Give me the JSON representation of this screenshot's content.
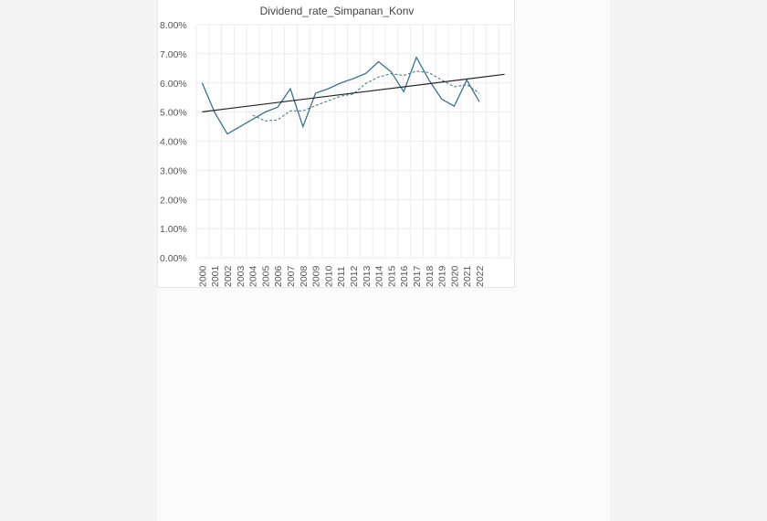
{
  "chart_data": {
    "type": "line",
    "title": "Dividend_rate_Simpanan_Konv",
    "xlabel": "",
    "ylabel": "",
    "categories": [
      "2000",
      "2001",
      "2002",
      "2003",
      "2004",
      "2005",
      "2006",
      "2007",
      "2008",
      "2009",
      "2010",
      "2011",
      "2012",
      "2013",
      "2014",
      "2015",
      "2016",
      "2017",
      "2018",
      "2019",
      "2020",
      "2021",
      "2022"
    ],
    "series": [
      {
        "name": "Dividend_rate_Simpanan_Konv",
        "color": "#3f7286",
        "values": [
          6.0,
          4.98,
          4.25,
          4.5,
          4.75,
          5.0,
          5.17,
          5.8,
          4.5,
          5.65,
          5.8,
          6.0,
          6.15,
          6.33,
          6.73,
          6.38,
          5.7,
          6.88,
          6.1,
          5.45,
          5.2,
          6.1,
          5.35
        ]
      }
    ],
    "moving_average": {
      "period": 5,
      "style": "dashed",
      "color": "#3f7286"
    },
    "trendline": {
      "type": "linear",
      "color": "#222222"
    },
    "ylim": [
      0,
      8
    ],
    "yticks": [
      "0.00%",
      "1.00%",
      "2.00%",
      "3.00%",
      "4.00%",
      "5.00%",
      "6.00%",
      "7.00%",
      "8.00%"
    ],
    "grid": true,
    "legend": "none"
  }
}
